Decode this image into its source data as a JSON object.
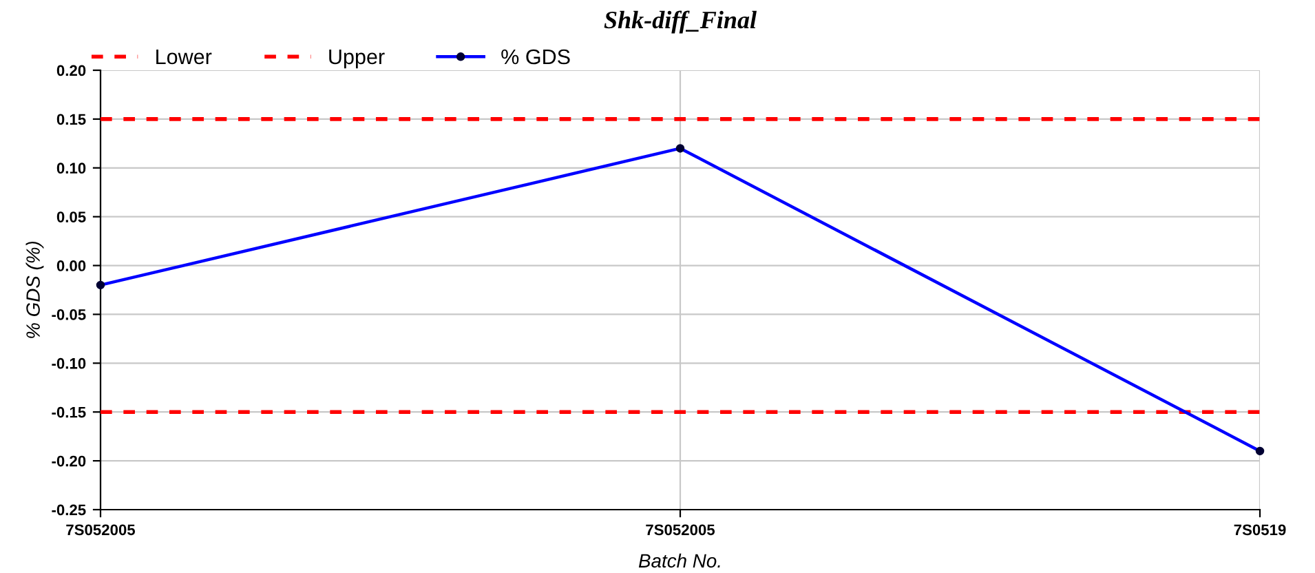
{
  "chart_data": {
    "type": "line",
    "title": "Shk-diff_Final",
    "xlabel": "Batch No.",
    "ylabel": "% GDS (%)",
    "categories": [
      "7S052005",
      "7S052005",
      "7S0519"
    ],
    "series": [
      {
        "name": "Lower",
        "color": "#ff0000",
        "values": [
          -0.15,
          -0.15,
          -0.15
        ],
        "line_style": "dashed",
        "marker": "none"
      },
      {
        "name": "Upper",
        "color": "#ff0000",
        "values": [
          0.15,
          0.15,
          0.15
        ],
        "line_style": "dashed",
        "marker": "none"
      },
      {
        "name": "% GDS",
        "color": "#0000ff",
        "values": [
          -0.02,
          0.12,
          -0.19
        ]
      }
    ],
    "ylim": [
      -0.25,
      0.2
    ],
    "yticks": [
      {
        "value": -0.25,
        "label": "-0.25"
      },
      {
        "value": -0.2,
        "label": "-0.20"
      },
      {
        "value": -0.15,
        "label": "-0.15"
      },
      {
        "value": -0.1,
        "label": "-0.10"
      },
      {
        "value": -0.05,
        "label": "-0.05"
      },
      {
        "value": 0,
        "label": "0.00"
      },
      {
        "value": 0.05,
        "label": "0.05"
      },
      {
        "value": 0.1,
        "label": "0.10"
      },
      {
        "value": 0.15,
        "label": "0.15"
      },
      {
        "value": 0.2,
        "label": "0.20"
      }
    ],
    "grid": true,
    "legend": "top left",
    "marker": "circle",
    "line_style": "solid"
  }
}
